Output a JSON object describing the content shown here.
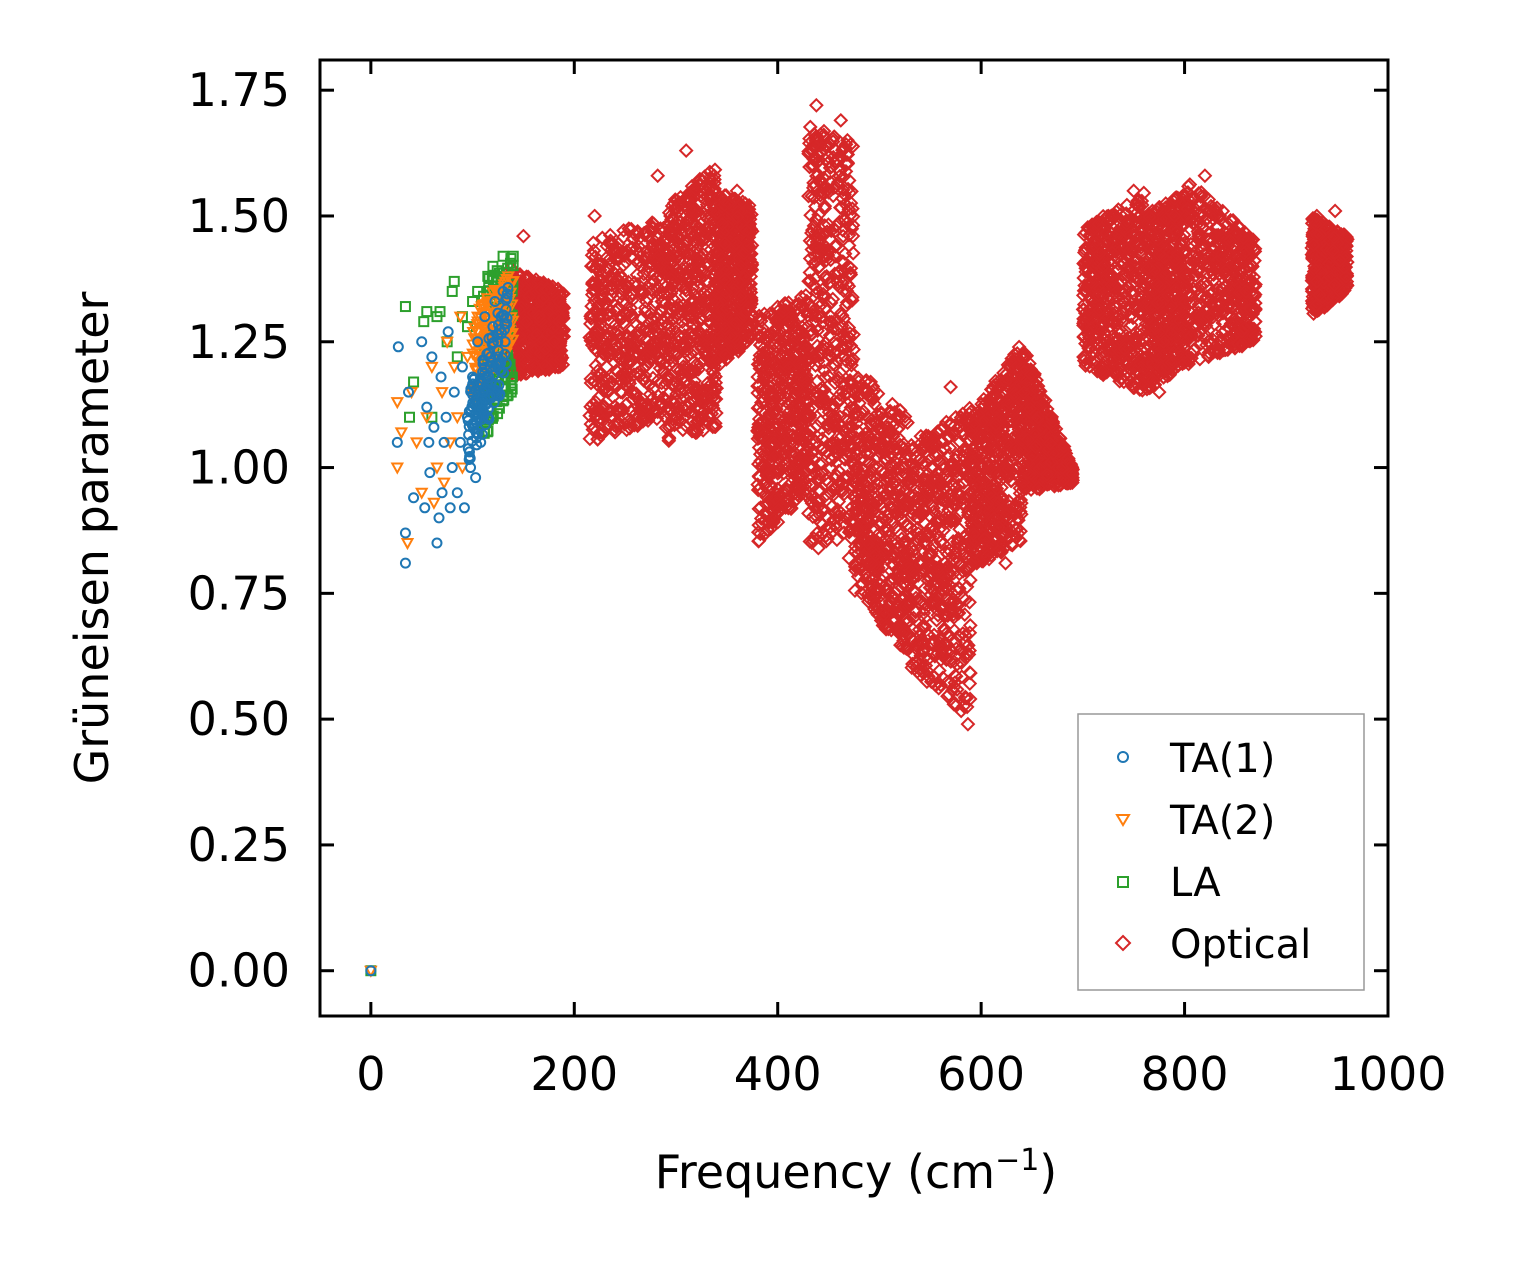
{
  "chart_data": {
    "type": "scatter",
    "title": "",
    "xlabel": "Frequency (cm",
    "xlabel_sup": "−1",
    "xlabel_close": ")",
    "ylabel": "Grüneisen parameter",
    "xlim": [
      -50,
      1000
    ],
    "ylim": [
      -0.09,
      1.81
    ],
    "xticks": [
      0,
      200,
      400,
      600,
      800,
      1000
    ],
    "yticks": [
      0.0,
      0.25,
      0.5,
      0.75,
      1.0,
      1.25,
      1.5,
      1.75
    ],
    "xtick_labels": [
      "0",
      "200",
      "400",
      "600",
      "800",
      "1000"
    ],
    "ytick_labels": [
      "0.00",
      "0.25",
      "0.50",
      "0.75",
      "1.00",
      "1.25",
      "1.50",
      "1.75"
    ],
    "legend_position": "lower-right",
    "series": [
      {
        "name": "TA(1)",
        "color": "#1f77b4",
        "marker": "circle",
        "points": [
          [
            0,
            0
          ],
          [
            27,
            1.24
          ],
          [
            26,
            1.05
          ],
          [
            34,
            0.81
          ],
          [
            34,
            0.87
          ],
          [
            37,
            1.15
          ],
          [
            42,
            0.94
          ],
          [
            50,
            1.25
          ],
          [
            53,
            0.92
          ],
          [
            55,
            1.12
          ],
          [
            57,
            1.05
          ],
          [
            58,
            0.99
          ],
          [
            60,
            1.22
          ],
          [
            62,
            1.08
          ],
          [
            65,
            0.85
          ],
          [
            67,
            0.9
          ],
          [
            69,
            1.18
          ],
          [
            70,
            0.95
          ],
          [
            72,
            1.05
          ],
          [
            74,
            1.1
          ],
          [
            76,
            1.27
          ],
          [
            78,
            0.92
          ],
          [
            80,
            1.0
          ],
          [
            82,
            1.15
          ],
          [
            85,
            0.95
          ],
          [
            88,
            1.05
          ],
          [
            90,
            1.2
          ],
          [
            92,
            0.92
          ],
          [
            95,
            1.1
          ],
          [
            98,
            1.0
          ],
          [
            100,
            1.18
          ],
          [
            103,
            0.98
          ],
          [
            105,
            1.25
          ],
          [
            108,
            1.05
          ],
          [
            110,
            1.15
          ],
          [
            112,
            1.3
          ],
          [
            115,
            1.1
          ],
          [
            118,
            1.2
          ],
          [
            120,
            1.28
          ],
          [
            122,
            1.33
          ],
          [
            125,
            1.22
          ],
          [
            128,
            1.3
          ],
          [
            130,
            1.35
          ],
          [
            132,
            1.25
          ]
        ],
        "band": {
          "x": [
            95,
            135
          ],
          "lo": [
            1.0,
            1.18
          ],
          "hi": [
            1.15,
            1.36
          ]
        }
      },
      {
        "name": "TA(2)",
        "color": "#ff7f0e",
        "marker": "triangle-down",
        "points": [
          [
            0,
            0
          ],
          [
            26,
            1.0
          ],
          [
            26,
            1.13
          ],
          [
            30,
            1.07
          ],
          [
            36,
            0.85
          ],
          [
            40,
            1.15
          ],
          [
            45,
            1.05
          ],
          [
            50,
            0.95
          ],
          [
            55,
            1.1
          ],
          [
            60,
            1.2
          ],
          [
            62,
            0.93
          ],
          [
            65,
            1.0
          ],
          [
            70,
            1.15
          ],
          [
            72,
            0.97
          ],
          [
            75,
            1.25
          ],
          [
            78,
            1.05
          ],
          [
            82,
            1.2
          ],
          [
            85,
            1.1
          ],
          [
            88,
            1.3
          ],
          [
            90,
            1.0
          ],
          [
            95,
            1.22
          ],
          [
            100,
            1.15
          ],
          [
            105,
            1.3
          ],
          [
            110,
            1.2
          ],
          [
            115,
            1.33
          ],
          [
            120,
            1.25
          ],
          [
            125,
            1.35
          ],
          [
            130,
            1.28
          ],
          [
            135,
            1.38
          ]
        ],
        "band": {
          "x": [
            100,
            140
          ],
          "lo": [
            1.12,
            1.25
          ],
          "hi": [
            1.3,
            1.4
          ]
        }
      },
      {
        "name": "LA",
        "color": "#2ca02c",
        "marker": "square",
        "points": [
          [
            0,
            0
          ],
          [
            34,
            1.32
          ],
          [
            38,
            1.1
          ],
          [
            42,
            1.17
          ],
          [
            52,
            1.29
          ],
          [
            55,
            1.31
          ],
          [
            60,
            1.1
          ],
          [
            65,
            1.3
          ],
          [
            68,
            1.31
          ],
          [
            75,
            1.25
          ],
          [
            80,
            1.35
          ],
          [
            82,
            1.37
          ],
          [
            85,
            1.22
          ],
          [
            90,
            1.3
          ],
          [
            95,
            1.28
          ],
          [
            100,
            1.33
          ],
          [
            105,
            1.35
          ],
          [
            110,
            1.25
          ],
          [
            115,
            1.38
          ],
          [
            118,
            1.1
          ],
          [
            120,
            1.4
          ],
          [
            125,
            1.2
          ],
          [
            128,
            1.38
          ],
          [
            130,
            1.42
          ],
          [
            135,
            1.3
          ],
          [
            138,
            1.15
          ],
          [
            140,
            1.42
          ]
        ],
        "band": {
          "x": [
            110,
            140
          ],
          "lo": [
            1.05,
            1.15
          ],
          "hi": [
            1.38,
            1.42
          ]
        }
      },
      {
        "name": "Optical",
        "color": "#d62728",
        "marker": "diamond",
        "points": [
          [
            150,
            1.46
          ],
          [
            165,
            1.3
          ],
          [
            180,
            1.25
          ],
          [
            220,
            1.5
          ],
          [
            232,
            1.44
          ],
          [
            282,
            1.58
          ],
          [
            286,
            1.33
          ],
          [
            310,
            1.63
          ],
          [
            360,
            1.55
          ],
          [
            438,
            1.72
          ],
          [
            440,
            0.84
          ],
          [
            462,
            1.69
          ],
          [
            470,
            0.82
          ],
          [
            570,
            1.16
          ],
          [
            575,
            1.1
          ],
          [
            587,
            0.49
          ],
          [
            624,
            0.81
          ],
          [
            680,
            1.0
          ],
          [
            750,
            1.55
          ],
          [
            775,
            1.15
          ],
          [
            790,
            1.5
          ],
          [
            820,
            1.58
          ],
          [
            835,
            1.25
          ],
          [
            860,
            1.35
          ],
          [
            930,
            1.5
          ],
          [
            948,
            1.51
          ]
        ],
        "regions": [
          {
            "x": [
              135,
              190
            ],
            "lo": [
              1.18,
              1.2
            ],
            "hi": [
              1.4,
              1.35
            ]
          },
          {
            "x": [
              215,
              290
            ],
            "lo": [
              1.05,
              1.1
            ],
            "hi": [
              1.45,
              1.5
            ]
          },
          {
            "x": [
              290,
              340
            ],
            "lo": [
              1.05,
              1.08
            ],
            "hi": [
              1.52,
              1.6
            ]
          },
          {
            "x": [
              340,
              375
            ],
            "lo": [
              1.2,
              1.25
            ],
            "hi": [
              1.55,
              1.52
            ]
          },
          {
            "x": [
              380,
              430
            ],
            "lo": [
              0.85,
              0.95
            ],
            "hi": [
              1.3,
              1.35
            ]
          },
          {
            "x": [
              430,
              475
            ],
            "lo": [
              0.85,
              0.85
            ],
            "hi": [
              1.68,
              1.65
            ]
          },
          {
            "x": [
              475,
              530
            ],
            "lo": [
              0.75,
              0.62
            ],
            "hi": [
              1.2,
              1.1
            ]
          },
          {
            "x": [
              530,
              590
            ],
            "lo": [
              0.6,
              0.5
            ],
            "hi": [
              1.05,
              1.12
            ]
          },
          {
            "x": [
              590,
              640
            ],
            "lo": [
              0.8,
              0.85
            ],
            "hi": [
              1.1,
              1.25
            ]
          },
          {
            "x": [
              640,
              690
            ],
            "lo": [
              0.95,
              0.97
            ],
            "hi": [
              1.25,
              1.0
            ]
          },
          {
            "x": [
              700,
              760
            ],
            "lo": [
              1.2,
              1.15
            ],
            "hi": [
              1.48,
              1.55
            ]
          },
          {
            "x": [
              760,
              800
            ],
            "lo": [
              1.15,
              1.2
            ],
            "hi": [
              1.5,
              1.55
            ]
          },
          {
            "x": [
              800,
              870
            ],
            "lo": [
              1.2,
              1.25
            ],
            "hi": [
              1.58,
              1.45
            ]
          },
          {
            "x": [
              925,
              960
            ],
            "lo": [
              1.3,
              1.35
            ],
            "hi": [
              1.5,
              1.46
            ]
          }
        ]
      }
    ]
  }
}
